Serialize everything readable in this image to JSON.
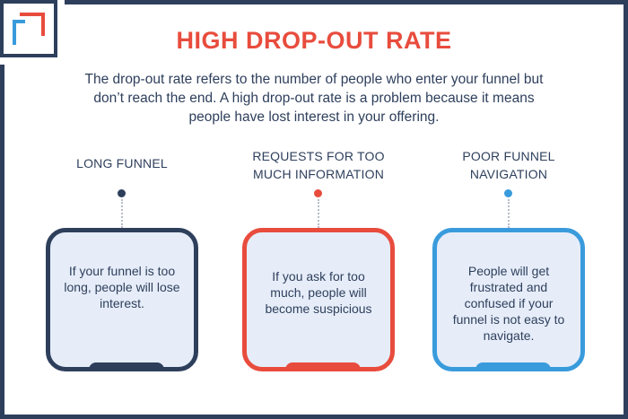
{
  "title": "HIGH DROP-OUT RATE",
  "intro": "The drop-out rate refers to the number of people who enter your funnel but don’t reach the end. A high drop-out rate is a problem because it means people have lost interest in your offering.",
  "colors": {
    "navy": "#2e3f5c",
    "red": "#e84c3d",
    "blue": "#3a9bdc",
    "card_fill": "#e6edf9"
  },
  "columns": [
    {
      "heading": "LONG FUNNEL",
      "text": "If your funnel is too long, people will lose interest.",
      "color": "#2e3f5c"
    },
    {
      "heading": "REQUESTS FOR TOO MUCH INFORMATION",
      "text": "If you ask for too much, people will become suspicious",
      "color": "#e84c3d"
    },
    {
      "heading": "POOR FUNNEL NAVIGATION",
      "text": "People will get frustrated and confused if your funnel is not easy to navigate.",
      "color": "#3a9bdc"
    }
  ]
}
